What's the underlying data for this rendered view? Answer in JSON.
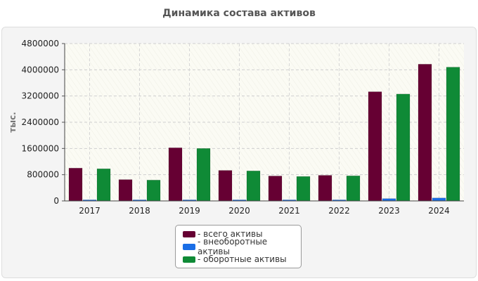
{
  "chart_data": {
    "type": "bar",
    "title": "Динамика состава активов",
    "ylabel": "тыс.",
    "xlabel": "",
    "categories": [
      "2017",
      "2018",
      "2019",
      "2020",
      "2021",
      "2022",
      "2023",
      "2024"
    ],
    "ylim": [
      0,
      4800000
    ],
    "yticks": [
      "0",
      "800000",
      "1600000",
      "2400000",
      "3200000",
      "4000000",
      "4800000"
    ],
    "grid": true,
    "legend_position": "bottom-center",
    "series": [
      {
        "name": "- всего активы",
        "color": "#660033",
        "values": [
          1000000,
          650000,
          1620000,
          930000,
          760000,
          780000,
          3330000,
          4170000
        ]
      },
      {
        "name": "- внеоборотные активы",
        "color": "#1a6ee6",
        "values": [
          20000,
          15000,
          20000,
          15000,
          15000,
          15000,
          70000,
          90000
        ]
      },
      {
        "name": "- оборотные активы",
        "color": "#0f8a36",
        "values": [
          980000,
          635000,
          1600000,
          915000,
          745000,
          765000,
          3260000,
          4080000
        ]
      }
    ]
  }
}
